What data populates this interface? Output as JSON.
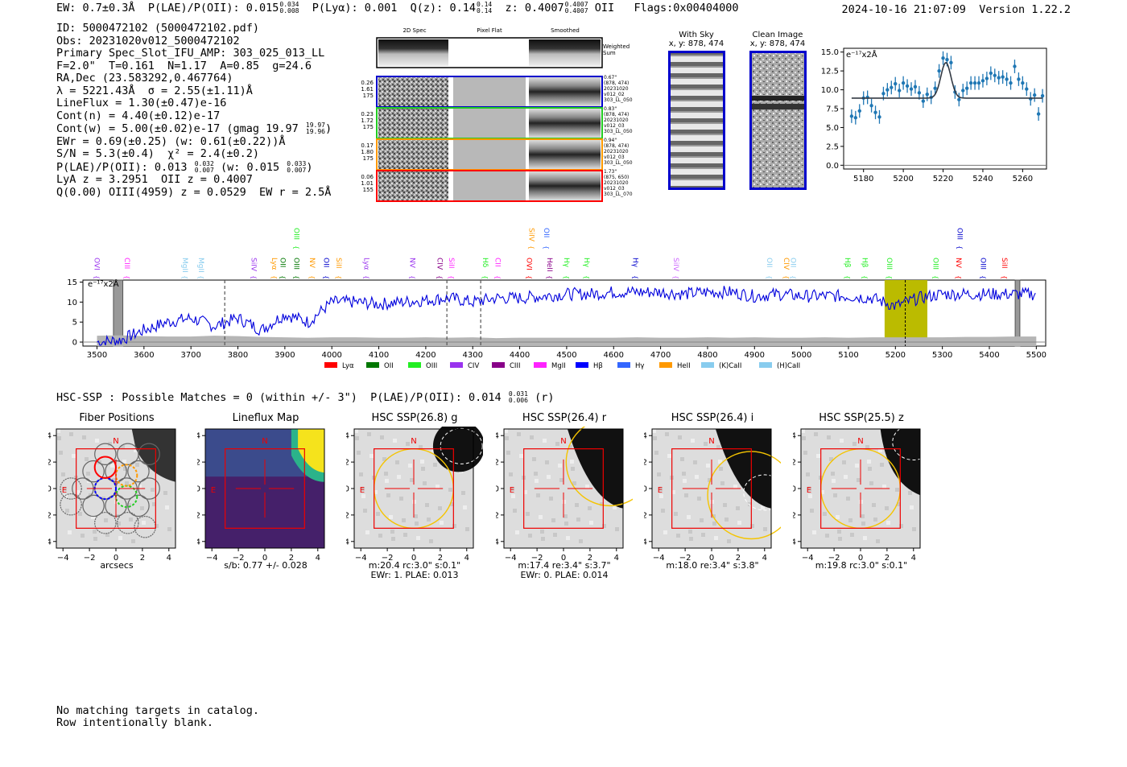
{
  "header": {
    "ew": "EW: 0.7±0.3Å",
    "plae_label": "P(LAE)/P(OII): 0.015",
    "plae_hi": "0.034",
    "plae_lo": "0.008",
    "plya": "P(Lyα): 0.001",
    "qz_label": "Q(z): 0.14",
    "qz_hi": "0.14",
    "qz_lo": "0.14",
    "z_label": "z: 0.4007",
    "z_hi": "0.4007",
    "z_lo": "0.4007",
    "z_line": "OII",
    "flags": "Flags:0x00404000",
    "timestamp": "2024-10-16 21:07:09",
    "version": "Version 1.22.2"
  },
  "info": {
    "id": "ID: 5000472102 (5000472102.pdf)",
    "obs": "Obs: 20231020v012_5000472102",
    "primary": "Primary Spec_Slot_IFU_AMP: 303_025_013_LL",
    "fparams": "F=2.0\"  T=0.161  N=1.17  A=0.85  g=24.6",
    "radec": "RA,Dec (23.583292,0.467764)",
    "lambda": "λ = 5221.43Å  σ = 2.55(±1.11)Å",
    "lineflux": "LineFlux = 1.30(±0.47)e-16",
    "contn": "Cont(n) = 4.40(±0.12)e-17",
    "contw": "Cont(w) = 5.00(±0.02)e-17 (gmag 19.97",
    "contw_hi": "19.97",
    "contw_lo": "19.96",
    "contw_end": ")",
    "ewr": "EWr = 0.69(±0.25) (w: 0.61(±0.22))Å",
    "sn": "S/N = 5.3(±0.4)  χ² = 2.4(±0.2)",
    "plae2": "P(LAE)/P(OII): 0.013",
    "plae2_hi": "0.032",
    "plae2_lo": "0.007",
    "plae2_w": "(w: 0.015",
    "plae2_w_hi": "0.033",
    "plae2_w_lo": "0.007",
    "plae2_end": ")",
    "lya": "LyA z = 3.2951  OII z = 0.4007",
    "q": "Q(0.00) OIII(4959) z = 0.0529  EW r = 2.5Å"
  },
  "cutouts": {
    "col_titles": [
      "2D Spec",
      "Pixel Flat",
      "Smoothed"
    ],
    "weighted_label": "Weighted Sum",
    "rows": [
      {
        "left": [
          "0.26",
          "1.61",
          "175"
        ],
        "right": [
          "0.67\"",
          "(878, 474)",
          "20231020",
          "v012_02",
          "303_LL_050"
        ],
        "color": "#0000cc"
      },
      {
        "left": [
          "0.23",
          "1.72",
          "175"
        ],
        "right": [
          "0.83\"",
          "(878, 474)",
          "20231020",
          "v012_03",
          "303_LL_050"
        ],
        "color": "#22cc22"
      },
      {
        "left": [
          "0.17",
          "1.80",
          "175"
        ],
        "right": [
          "0.94\"",
          "(878, 474)",
          "20231020",
          "v012_03",
          "303_LL_050"
        ],
        "color": "#ff9900"
      },
      {
        "left": [
          "0.06",
          "1.01",
          "155"
        ],
        "right": [
          "1.73\"",
          "(875, 650)",
          "20231020",
          "v012_03",
          "303_LL_070"
        ],
        "color": "#ff0000"
      }
    ]
  },
  "sky": {
    "title": "With Sky",
    "coords": "x, y: 878, 474"
  },
  "clean": {
    "title": "Clean Image",
    "coords": "x, y: 878, 474"
  },
  "chart_data": [
    {
      "type": "scatter",
      "id": "line-fit",
      "ylabel": "e⁻¹⁷x2Å",
      "xlim": [
        5170,
        5272
      ],
      "ylim": [
        -0.5,
        15.5
      ],
      "xticks": [
        5180,
        5200,
        5220,
        5240,
        5260
      ],
      "yticks": [
        0.0,
        2.5,
        5.0,
        7.5,
        10.0,
        12.5,
        15.0
      ],
      "points_x": [
        5174,
        5176,
        5178,
        5180,
        5182,
        5184,
        5186,
        5188,
        5190,
        5192,
        5194,
        5196,
        5198,
        5200,
        5202,
        5204,
        5206,
        5208,
        5210,
        5212,
        5214,
        5216,
        5218,
        5220,
        5222,
        5224,
        5226,
        5228,
        5230,
        5232,
        5234,
        5236,
        5238,
        5240,
        5242,
        5244,
        5246,
        5248,
        5250,
        5252,
        5254,
        5256,
        5258,
        5260,
        5262,
        5264,
        5266,
        5268,
        5270
      ],
      "points_y": [
        6.5,
        6.3,
        7.2,
        8.9,
        9.0,
        7.9,
        7.0,
        6.4,
        9.5,
        10.0,
        10.3,
        10.8,
        9.9,
        10.9,
        10.5,
        10.1,
        10.4,
        9.6,
        8.5,
        9.4,
        9.0,
        10.2,
        12.5,
        14.2,
        14.0,
        13.6,
        9.7,
        8.7,
        9.9,
        10.2,
        10.9,
        10.9,
        10.9,
        11.2,
        11.5,
        12.2,
        11.9,
        11.6,
        11.7,
        11.4,
        10.9,
        13.1,
        11.4,
        10.9,
        10.1,
        8.8,
        9.3,
        6.8,
        9.2
      ],
      "fit_continuum": 8.9,
      "fit_peak": 13.6,
      "fit_center": 5221.4,
      "fit_sigma": 2.55
    },
    {
      "type": "line",
      "id": "full-spectrum",
      "ylabel": "e⁻¹⁷x2Å",
      "xlim": [
        3470,
        5520
      ],
      "ylim": [
        -1,
        15.5
      ],
      "xticks": [
        3500,
        3600,
        3700,
        3800,
        3900,
        4000,
        4100,
        4200,
        4300,
        4400,
        4500,
        4600,
        4700,
        4800,
        4900,
        5000,
        5100,
        5200,
        5300,
        5400,
        5500
      ],
      "yticks": [
        0,
        5,
        10,
        15
      ],
      "highlight_range": [
        5177,
        5268
      ],
      "dashed_lines": [
        3772,
        4245,
        4317
      ],
      "marker_line": 5221,
      "legend": [
        {
          "label": "Lyα",
          "color": "#ff0000"
        },
        {
          "label": "OII",
          "color": "#007700"
        },
        {
          "label": "OIII",
          "color": "#22ee22"
        },
        {
          "label": "CIV",
          "color": "#9933ee"
        },
        {
          "label": "CIII",
          "color": "#880088"
        },
        {
          "label": "MgII",
          "color": "#ff22ff"
        },
        {
          "label": "Hβ",
          "color": "#0000ff"
        },
        {
          "label": "Hγ",
          "color": "#3366ff"
        },
        {
          "label": "HeII",
          "color": "#ff9900"
        },
        {
          "label": "(K)CaII",
          "color": "#88ccee"
        },
        {
          "label": "(H)CaII",
          "color": "#88ccee"
        }
      ],
      "line_labels": [
        {
          "x": 3490,
          "label": "OVI",
          "color": "#9933ee",
          "row": 1
        },
        {
          "x": 3554,
          "label": "CIII",
          "color": "#ff22ff",
          "row": 1
        },
        {
          "x": 3677,
          "label": "MgII",
          "color": "#88ccee",
          "row": 1
        },
        {
          "x": 3712,
          "label": "MgII",
          "color": "#88ccee",
          "row": 1
        },
        {
          "x": 3824,
          "label": "SiIV",
          "color": "#9933ee",
          "row": 1
        },
        {
          "x": 3868,
          "label": "Lyα",
          "color": "#ff9900",
          "row": 1
        },
        {
          "x": 3886,
          "label": "OII",
          "color": "#007700",
          "row": 1
        },
        {
          "x": 3915,
          "label": "OIII",
          "color": "#007700",
          "row": 1
        },
        {
          "x": 3915,
          "label": "OIII",
          "color": "#22ee22",
          "row": 0
        },
        {
          "x": 3948,
          "label": "NV",
          "color": "#ff9900",
          "row": 1
        },
        {
          "x": 3978,
          "label": "OII",
          "color": "#0000cc",
          "row": 1
        },
        {
          "x": 4005,
          "label": "SiII",
          "color": "#ff9900",
          "row": 1
        },
        {
          "x": 4064,
          "label": "Lyα",
          "color": "#9933ee",
          "row": 1
        },
        {
          "x": 4162,
          "label": "NV",
          "color": "#9933ee",
          "row": 1
        },
        {
          "x": 4220,
          "label": "CIV",
          "color": "#880088",
          "row": 1
        },
        {
          "x": 4245,
          "label": "SiII",
          "color": "#ff22ff",
          "row": 1
        },
        {
          "x": 4317,
          "label": "Hδ",
          "color": "#22ee22",
          "row": 1
        },
        {
          "x": 4343,
          "label": "CII",
          "color": "#ff22ff",
          "row": 1
        },
        {
          "x": 4410,
          "label": "OVI",
          "color": "#ff0000",
          "row": 1
        },
        {
          "x": 4415,
          "label": "SiIV",
          "color": "#ff9900",
          "row": 0
        },
        {
          "x": 4447,
          "label": "OII",
          "color": "#3366ff",
          "row": 0
        },
        {
          "x": 4454,
          "label": "HeII",
          "color": "#880088",
          "row": 1
        },
        {
          "x": 4490,
          "label": "Hγ",
          "color": "#22ee22",
          "row": 1
        },
        {
          "x": 4533,
          "label": "Hγ",
          "color": "#22ee22",
          "row": 1
        },
        {
          "x": 4636,
          "label": "Hγ",
          "color": "#0000cc",
          "row": 1
        },
        {
          "x": 4723,
          "label": "SiIV",
          "color": "#cc66ff",
          "row": 1
        },
        {
          "x": 4922,
          "label": "OII",
          "color": "#88ccee",
          "row": 1
        },
        {
          "x": 4958,
          "label": "CIV",
          "color": "#ff9900",
          "row": 1
        },
        {
          "x": 4972,
          "label": "OII",
          "color": "#88ccee",
          "row": 1
        },
        {
          "x": 5088,
          "label": "Hβ",
          "color": "#22ee22",
          "row": 1
        },
        {
          "x": 5125,
          "label": "Hβ",
          "color": "#22ee22",
          "row": 1
        },
        {
          "x": 5177,
          "label": "OIII",
          "color": "#22ee22",
          "row": 1
        },
        {
          "x": 5276,
          "label": "OIII",
          "color": "#22ee22",
          "row": 1
        },
        {
          "x": 5325,
          "label": "NV",
          "color": "#ff0000",
          "row": 1
        },
        {
          "x": 5327,
          "label": "OIII",
          "color": "#0000cc",
          "row": 0
        },
        {
          "x": 5377,
          "label": "OIII",
          "color": "#0000cc",
          "row": 1
        },
        {
          "x": 5422,
          "label": "SiII",
          "color": "#ff0000",
          "row": 1
        }
      ],
      "spectrum_x": [
        3500,
        3550,
        3600,
        3650,
        3700,
        3750,
        3800,
        3850,
        3900,
        3950,
        4000,
        4050,
        4100,
        4150,
        4200,
        4250,
        4300,
        4350,
        4400,
        4450,
        4500,
        4550,
        4600,
        4650,
        4700,
        4750,
        4800,
        4850,
        4900,
        4950,
        5000,
        5050,
        5100,
        5150,
        5200,
        5250,
        5300,
        5350,
        5400,
        5450,
        5500
      ],
      "spectrum_y": [
        0,
        0.5,
        3,
        5,
        6,
        4,
        6,
        3,
        7,
        5,
        10,
        10,
        9.5,
        10,
        10.5,
        11,
        10,
        11,
        11,
        11.5,
        12,
        12,
        12.5,
        12.5,
        12.5,
        12,
        12.5,
        12.5,
        11.5,
        12,
        11.5,
        11.5,
        11.5,
        11,
        9,
        11,
        12,
        12,
        12,
        12,
        12
      ],
      "noise_y": [
        1.6,
        1.7,
        1.5,
        1.4,
        1.4,
        1.6,
        1.5,
        1.3,
        1.2,
        1.1,
        1.2,
        1.2,
        1.1,
        1.1,
        1.2,
        1.1,
        1.2,
        1.0,
        1.1,
        1.1,
        1.1,
        1.1,
        1.1,
        1.2,
        1.1,
        1.1,
        1.2,
        1.1,
        1.2,
        1.1,
        1.1,
        1.2,
        1.1,
        1.2,
        1.2,
        1.2,
        1.2,
        1.3,
        1.3,
        1.4,
        1.4
      ]
    }
  ],
  "hsc": {
    "label": "HSC-SSP : Possible Matches = 0 (within +/- 3\")  P(LAE)/P(OII): 0.014",
    "hi": "0.031",
    "lo": "0.006",
    "band": "(r)"
  },
  "panels": [
    {
      "title": "Fiber Positions",
      "labels": [
        "arcsecs"
      ]
    },
    {
      "title": "Lineflux Map",
      "labels": [
        "s/b: 0.77 +/- 0.028"
      ]
    },
    {
      "title": "HSC SSP(26.8) g",
      "labels": [
        "m:20.4 rc:3.0\"  s:0.1\"",
        "EWr: 1. PLAE: 0.013"
      ]
    },
    {
      "title": "HSC SSP(26.4) r",
      "labels": [
        "m:17.4  re:3.4\"  s:3.7\"",
        "EWr: 0. PLAE: 0.014"
      ]
    },
    {
      "title": "HSC SSP(26.4) i",
      "labels": [
        "m:18.0  re:3.4\"  s:3.8\""
      ]
    },
    {
      "title": "HSC SSP(25.5) z",
      "labels": [
        "m:19.8 rc:3.0\"  s:0.1\""
      ]
    }
  ],
  "cutout_axes": {
    "ticks": [
      "−4",
      "−2",
      "0",
      "2",
      "4"
    ],
    "north": "N",
    "east": "E"
  },
  "footer": {
    "line1": "No matching targets in catalog.",
    "line2": "Row intentionally blank."
  }
}
